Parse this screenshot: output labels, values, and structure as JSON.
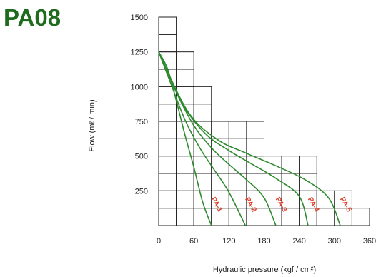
{
  "model": "PA08",
  "colors": {
    "title": "#1e6b1e",
    "curve": "#2f8a2f",
    "label": "#d9402a",
    "grid": "#222222"
  },
  "chart_data": {
    "type": "line",
    "title": "PA08",
    "xlabel": "Hydraulic pressure (kgf / cm²)",
    "ylabel": "Flow (mℓ / min)",
    "xlim": [
      0,
      360
    ],
    "ylim": [
      0,
      1500
    ],
    "x_ticks": [
      "0",
      "60",
      "120",
      "180",
      "240",
      "300",
      "360"
    ],
    "y_ticks": [
      "250",
      "500",
      "750",
      "1000",
      "1250",
      "1500"
    ],
    "grid": true,
    "series": [
      {
        "name": "PA-1",
        "x": [
          0,
          15,
          30,
          45,
          60,
          75,
          90
        ],
        "y": [
          1250,
          1130,
          900,
          650,
          420,
          170,
          0
        ]
      },
      {
        "name": "PA-2",
        "x": [
          0,
          20,
          45,
          70,
          95,
          120,
          148
        ],
        "y": [
          1250,
          1030,
          760,
          560,
          400,
          240,
          0
        ]
      },
      {
        "name": "PA-3",
        "x": [
          0,
          30,
          60,
          90,
          120,
          150,
          180,
          200
        ],
        "y": [
          1250,
          960,
          720,
          560,
          440,
          330,
          200,
          0
        ]
      },
      {
        "name": "PA-4",
        "x": [
          0,
          40,
          80,
          120,
          160,
          200,
          240,
          255
        ],
        "y": [
          1250,
          880,
          660,
          540,
          440,
          340,
          210,
          0
        ]
      },
      {
        "name": "PA-5",
        "x": [
          0,
          50,
          100,
          150,
          200,
          250,
          290,
          310
        ],
        "y": [
          1250,
          820,
          620,
          520,
          430,
          330,
          200,
          0
        ]
      }
    ]
  }
}
